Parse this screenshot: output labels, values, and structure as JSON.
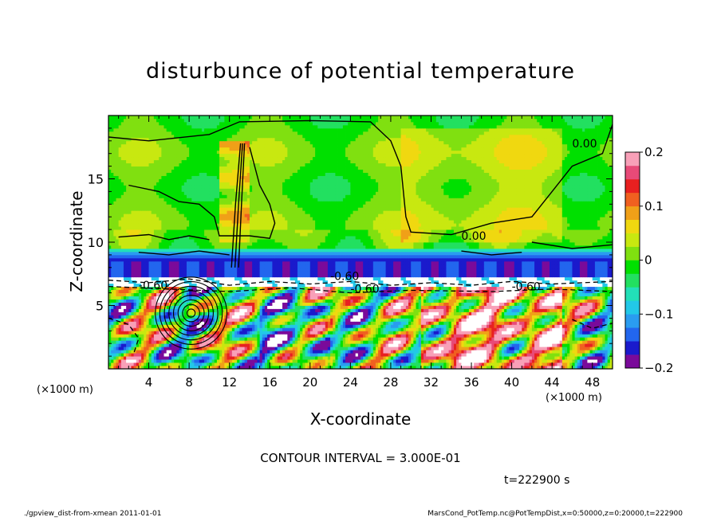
{
  "chart_data": {
    "type": "heatmap",
    "title": "disturbunce of potential temperature",
    "xlabel": "X-coordinate",
    "ylabel": "Z-coordinate",
    "x_unit_left": "(×1000 m)",
    "x_unit_right": "(×1000 m)",
    "x_ticks": [
      4,
      8,
      12,
      16,
      20,
      24,
      28,
      32,
      36,
      40,
      44,
      48
    ],
    "y_ticks": [
      5,
      10,
      15
    ],
    "xlim": [
      0,
      50
    ],
    "ylim": [
      0,
      20
    ],
    "colorbar_ticks": [
      0.2,
      0.1,
      0,
      -0.1,
      -0.2
    ],
    "colorbar_range": [
      -0.2,
      0.2
    ],
    "colors": [
      "#7a0a9a",
      "#1a1acc",
      "#2266ee",
      "#2a9cf0",
      "#22c8e8",
      "#22e0b8",
      "#22e060",
      "#00e000",
      "#80e010",
      "#c8e810",
      "#f0d810",
      "#f0a018",
      "#f06020",
      "#e82020",
      "#e84a78",
      "#f8a0b8"
    ],
    "contour_labels": [
      "0.00",
      "0.00",
      "-0.60",
      "-0.60",
      "-0.60",
      "-0.60"
    ],
    "contour_interval_text": "CONTOUR INTERVAL = 3.000E-01",
    "time_text": "t=222900 s"
  },
  "footer": {
    "left": "./gpview_dist-from-xmean  2011-01-01",
    "right": "MarsCond_PotTemp.nc@PotTempDist,x=0:50000,z=0:20000,t=222900"
  }
}
